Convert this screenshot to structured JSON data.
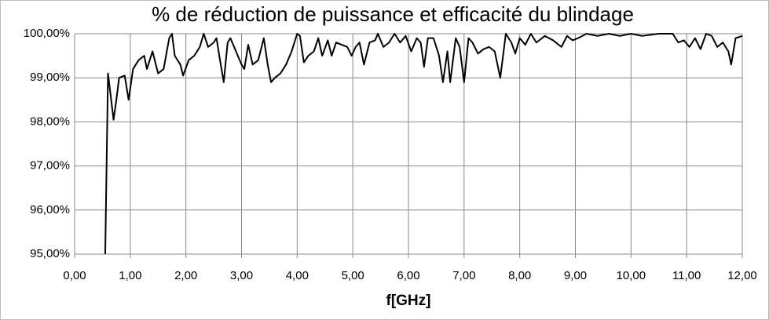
{
  "chart_data": {
    "type": "line",
    "title": "% de réduction de puissance et efficacité du blindage",
    "x_label": "f[GHz]",
    "grid": true,
    "xlim": [
      0,
      12
    ],
    "ylim": [
      95,
      100
    ],
    "xticks": [
      {
        "value": 0,
        "label": "0,00"
      },
      {
        "value": 1,
        "label": "1,00"
      },
      {
        "value": 2,
        "label": "2,00"
      },
      {
        "value": 3,
        "label": "3,00"
      },
      {
        "value": 4,
        "label": "4,00"
      },
      {
        "value": 5,
        "label": "5,00"
      },
      {
        "value": 6,
        "label": "6,00"
      },
      {
        "value": 7,
        "label": "7,00"
      },
      {
        "value": 8,
        "label": "8,00"
      },
      {
        "value": 9,
        "label": "9,00"
      },
      {
        "value": 10,
        "label": "10,00"
      },
      {
        "value": 11,
        "label": "11,00"
      },
      {
        "value": 12,
        "label": "12,00"
      }
    ],
    "yticks": [
      {
        "value": 95,
        "label": "95,00%"
      },
      {
        "value": 96,
        "label": "96,00%"
      },
      {
        "value": 97,
        "label": "97,00%"
      },
      {
        "value": 98,
        "label": "98,00%"
      },
      {
        "value": 99,
        "label": "99,00%"
      },
      {
        "value": 100,
        "label": "100,00%"
      }
    ],
    "x": [
      0.55,
      0.6,
      0.7,
      0.75,
      0.8,
      0.9,
      0.97,
      1.05,
      1.15,
      1.25,
      1.3,
      1.4,
      1.5,
      1.6,
      1.7,
      1.75,
      1.8,
      1.9,
      1.95,
      2.05,
      2.15,
      2.25,
      2.32,
      2.4,
      2.5,
      2.55,
      2.6,
      2.68,
      2.75,
      2.8,
      2.9,
      3.0,
      3.05,
      3.12,
      3.2,
      3.3,
      3.4,
      3.47,
      3.53,
      3.6,
      3.7,
      3.8,
      3.9,
      4.0,
      4.05,
      4.12,
      4.2,
      4.3,
      4.38,
      4.45,
      4.55,
      4.62,
      4.7,
      4.8,
      4.9,
      4.98,
      5.05,
      5.12,
      5.2,
      5.3,
      5.4,
      5.45,
      5.55,
      5.65,
      5.75,
      5.85,
      5.95,
      6.05,
      6.15,
      6.22,
      6.28,
      6.35,
      6.45,
      6.55,
      6.62,
      6.7,
      6.75,
      6.85,
      6.92,
      7.0,
      7.08,
      7.15,
      7.25,
      7.35,
      7.45,
      7.55,
      7.65,
      7.75,
      7.85,
      7.92,
      8.0,
      8.1,
      8.2,
      8.3,
      8.45,
      8.6,
      8.75,
      8.85,
      8.95,
      9.05,
      9.2,
      9.4,
      9.6,
      9.8,
      10.0,
      10.2,
      10.5,
      10.75,
      10.85,
      10.95,
      11.05,
      11.15,
      11.25,
      11.35,
      11.45,
      11.55,
      11.65,
      11.75,
      11.8,
      11.88,
      12.0
    ],
    "series": [
      {
        "name": "efficacité",
        "color": "#000000",
        "values": [
          95.0,
          99.1,
          98.05,
          98.5,
          99.0,
          99.05,
          98.5,
          99.2,
          99.4,
          99.5,
          99.2,
          99.6,
          99.1,
          99.2,
          99.9,
          100.0,
          99.5,
          99.3,
          99.05,
          99.4,
          99.5,
          99.7,
          100.0,
          99.7,
          99.8,
          99.9,
          99.5,
          98.9,
          99.8,
          99.9,
          99.6,
          99.3,
          99.2,
          99.75,
          99.3,
          99.4,
          99.9,
          99.3,
          98.9,
          99.0,
          99.1,
          99.3,
          99.6,
          100.0,
          99.95,
          99.35,
          99.5,
          99.6,
          99.9,
          99.5,
          99.85,
          99.5,
          99.8,
          99.75,
          99.7,
          99.5,
          99.7,
          99.8,
          99.3,
          99.8,
          99.85,
          100.0,
          99.7,
          99.8,
          100.0,
          99.8,
          99.95,
          99.6,
          99.9,
          99.8,
          99.25,
          99.9,
          99.9,
          99.5,
          98.9,
          99.6,
          98.9,
          99.9,
          99.7,
          98.9,
          99.9,
          99.8,
          99.55,
          99.65,
          99.7,
          99.6,
          99.0,
          100.0,
          99.8,
          99.55,
          99.9,
          99.75,
          100.0,
          99.8,
          99.95,
          99.85,
          99.7,
          99.95,
          99.85,
          99.9,
          100.0,
          99.95,
          100.0,
          99.95,
          100.0,
          99.95,
          100.0,
          100.0,
          99.8,
          99.85,
          99.7,
          99.9,
          99.65,
          100.0,
          99.95,
          99.7,
          99.8,
          99.6,
          99.3,
          99.9,
          99.95
        ]
      }
    ]
  }
}
